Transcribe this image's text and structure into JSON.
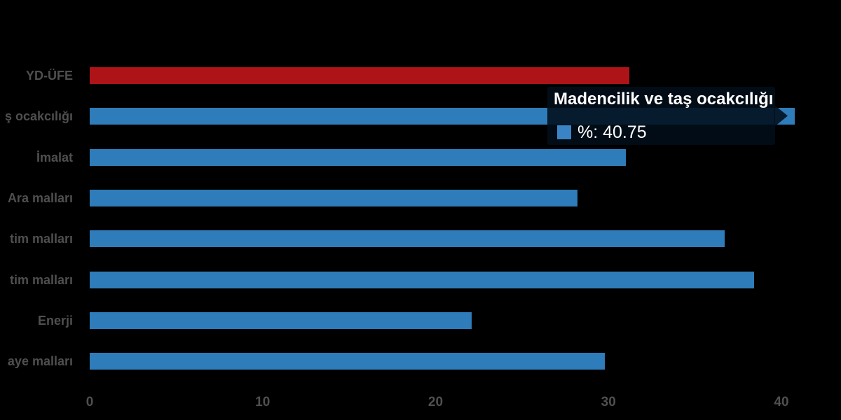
{
  "page": {
    "background": "#000000"
  },
  "chart_data": {
    "type": "bar",
    "orientation": "horizontal",
    "title": "",
    "xlabel": "",
    "ylabel": "",
    "xlim": [
      0,
      43.4
    ],
    "x_ticks": [
      "0",
      "10",
      "20",
      "30",
      "40"
    ],
    "grid": false,
    "legend_position": "none",
    "categories": [
      "YD-ÜFE",
      "ş ocakcılığı",
      "İmalat",
      "Ara malları",
      "tim malları",
      "tim malları",
      "Enerji",
      "aye malları"
    ],
    "series": [
      {
        "name": "%",
        "values": [
          31.2,
          40.75,
          31.0,
          28.2,
          36.7,
          38.4,
          22.1,
          29.8
        ]
      }
    ],
    "bar_colors": [
      "#ae1318",
      "#2f7cba",
      "#2f7cba",
      "#2f7cba",
      "#2f7cba",
      "#2f7cba",
      "#2f7cba",
      "#2f7cba"
    ],
    "highlighted_index": 1,
    "highlighted_full_name": "Madencilik ve taş ocakcılığı"
  },
  "tooltip": {
    "title": "Madencilik ve taş ocakcılığı",
    "value_text": "%: 40.75",
    "swatch_color": "#3a84c4",
    "background": "rgba(2,14,26,0.88)"
  },
  "colors": {
    "bar_red": "#ae1318",
    "bar_blue": "#2f7cba",
    "label_gray": "#4f4f4f",
    "tick_gray": "#4f4f4f",
    "tooltip_text": "#ffffff"
  }
}
